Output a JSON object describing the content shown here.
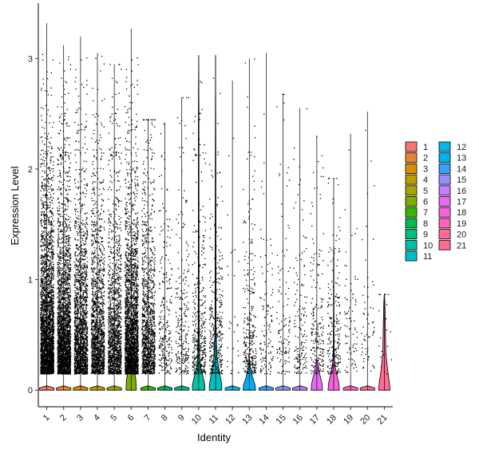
{
  "chart_data": {
    "type": "violin",
    "xlabel": "Identity",
    "ylabel": "Expression Level",
    "ylim": [
      -0.15,
      3.5
    ],
    "yticks": [
      0,
      1,
      2,
      3
    ],
    "legend_position": "right",
    "legend_columns": 2,
    "categories": [
      "1",
      "2",
      "3",
      "4",
      "5",
      "6",
      "7",
      "8",
      "9",
      "10",
      "11",
      "12",
      "13",
      "14",
      "15",
      "16",
      "17",
      "18",
      "19",
      "20",
      "21"
    ],
    "colors": [
      "#F8766D",
      "#EA8331",
      "#D89000",
      "#C09B00",
      "#A3A500",
      "#7CAE00",
      "#39B600",
      "#00BB4E",
      "#00BF7D",
      "#00C1A3",
      "#00BFC4",
      "#00BAE0",
      "#00B0F6",
      "#35A2FF",
      "#9590FF",
      "#C77CFF",
      "#E76BF3",
      "#FA62DB",
      "#FF62BC",
      "#FF6A98",
      "#FF6C91"
    ],
    "series": [
      {
        "cluster": "1",
        "max": 3.32,
        "median": 0.0,
        "violin": [
          [
            0,
            0.28
          ],
          [
            0.02,
            0.28
          ],
          [
            0.04,
            0.0
          ]
        ],
        "points": 3000
      },
      {
        "cluster": "2",
        "max": 3.12,
        "median": 0.0,
        "violin": [
          [
            0,
            0.28
          ],
          [
            0.02,
            0.28
          ],
          [
            0.04,
            0.0
          ]
        ],
        "points": 2600
      },
      {
        "cluster": "3",
        "max": 3.2,
        "median": 0.0,
        "violin": [
          [
            0,
            0.28
          ],
          [
            0.02,
            0.28
          ],
          [
            0.04,
            0.0
          ]
        ],
        "points": 1800
      },
      {
        "cluster": "4",
        "max": 3.05,
        "median": 0.0,
        "violin": [
          [
            0,
            0.28
          ],
          [
            0.02,
            0.28
          ],
          [
            0.04,
            0.0
          ]
        ],
        "points": 1500
      },
      {
        "cluster": "5",
        "max": 2.95,
        "median": 0.0,
        "violin": [
          [
            0,
            0.28
          ],
          [
            0.02,
            0.28
          ],
          [
            0.04,
            0.0
          ]
        ],
        "points": 1400
      },
      {
        "cluster": "6",
        "max": 3.27,
        "median": 0.0,
        "violin": [
          [
            0,
            0.2
          ],
          [
            0.1,
            0.18
          ],
          [
            0.2,
            0.1
          ],
          [
            0.28,
            0.04
          ],
          [
            0.33,
            0.0
          ]
        ],
        "points": 2400
      },
      {
        "cluster": "7",
        "max": 2.45,
        "median": 0.0,
        "violin": [
          [
            0,
            0.28
          ],
          [
            0.02,
            0.28
          ],
          [
            0.04,
            0.0
          ]
        ],
        "points": 1200
      },
      {
        "cluster": "8",
        "max": 2.42,
        "median": 0.0,
        "violin": [
          [
            0,
            0.28
          ],
          [
            0.02,
            0.28
          ],
          [
            0.04,
            0.0
          ]
        ],
        "points": 250
      },
      {
        "cluster": "9",
        "max": 2.65,
        "median": 0.0,
        "violin": [
          [
            0,
            0.28
          ],
          [
            0.02,
            0.28
          ],
          [
            0.04,
            0.0
          ]
        ],
        "points": 250
      },
      {
        "cluster": "10",
        "max": 3.03,
        "median": 0.0,
        "violin": [
          [
            0,
            0.24
          ],
          [
            0.05,
            0.24
          ],
          [
            0.12,
            0.17
          ],
          [
            0.2,
            0.08
          ],
          [
            0.28,
            0.04
          ],
          [
            0.5,
            0.02
          ],
          [
            1.0,
            0.015
          ],
          [
            2.5,
            0.01
          ],
          [
            3.03,
            0.0
          ]
        ],
        "points": 400
      },
      {
        "cluster": "11",
        "max": 3.03,
        "median": 0.0,
        "violin": [
          [
            0,
            0.24
          ],
          [
            0.05,
            0.24
          ],
          [
            0.14,
            0.17
          ],
          [
            0.24,
            0.1
          ],
          [
            0.32,
            0.05
          ],
          [
            0.6,
            0.02
          ],
          [
            1.5,
            0.015
          ],
          [
            2.3,
            0.01
          ],
          [
            3.03,
            0.0
          ]
        ],
        "points": 350
      },
      {
        "cluster": "12",
        "max": 2.8,
        "median": 0.0,
        "violin": [
          [
            0,
            0.28
          ],
          [
            0.02,
            0.28
          ],
          [
            0.04,
            0.0
          ]
        ],
        "points": 30
      },
      {
        "cluster": "13",
        "max": 3.0,
        "median": 0.0,
        "violin": [
          [
            0,
            0.24
          ],
          [
            0.05,
            0.22
          ],
          [
            0.12,
            0.12
          ],
          [
            0.2,
            0.05
          ],
          [
            0.3,
            0.0
          ]
        ],
        "points": 300
      },
      {
        "cluster": "14",
        "max": 3.05,
        "median": 0.0,
        "violin": [
          [
            0,
            0.28
          ],
          [
            0.02,
            0.28
          ],
          [
            0.04,
            0.0
          ]
        ],
        "points": 120
      },
      {
        "cluster": "15",
        "max": 2.68,
        "median": 0.0,
        "violin": [
          [
            0,
            0.28
          ],
          [
            0.02,
            0.28
          ],
          [
            0.04,
            0.0
          ]
        ],
        "points": 120
      },
      {
        "cluster": "16",
        "max": 2.55,
        "median": 0.0,
        "violin": [
          [
            0,
            0.28
          ],
          [
            0.02,
            0.28
          ],
          [
            0.04,
            0.0
          ]
        ],
        "points": 150
      },
      {
        "cluster": "17",
        "max": 2.3,
        "median": 0.0,
        "violin": [
          [
            0,
            0.22
          ],
          [
            0.06,
            0.2
          ],
          [
            0.14,
            0.12
          ],
          [
            0.22,
            0.05
          ],
          [
            0.28,
            0.0
          ]
        ],
        "points": 200
      },
      {
        "cluster": "18",
        "max": 1.92,
        "median": 0.0,
        "violin": [
          [
            0,
            0.22
          ],
          [
            0.06,
            0.2
          ],
          [
            0.14,
            0.12
          ],
          [
            0.22,
            0.05
          ],
          [
            0.32,
            0.02
          ],
          [
            0.7,
            0.01
          ],
          [
            1.2,
            0.005
          ],
          [
            1.3,
            0.0
          ]
        ],
        "points": 200
      },
      {
        "cluster": "19",
        "max": 2.32,
        "median": 0.0,
        "violin": [
          [
            0,
            0.28
          ],
          [
            0.02,
            0.28
          ],
          [
            0.04,
            0.0
          ]
        ],
        "points": 80
      },
      {
        "cluster": "20",
        "max": 2.52,
        "median": 0.0,
        "violin": [
          [
            0,
            0.28
          ],
          [
            0.02,
            0.28
          ],
          [
            0.04,
            0.0
          ]
        ],
        "points": 60
      },
      {
        "cluster": "21",
        "max": 0.87,
        "median": 0.0,
        "violin": [
          [
            0,
            0.22
          ],
          [
            0.06,
            0.2
          ],
          [
            0.14,
            0.15
          ],
          [
            0.24,
            0.1
          ],
          [
            0.34,
            0.06
          ],
          [
            0.45,
            0.05
          ],
          [
            0.6,
            0.04
          ],
          [
            0.8,
            0.02
          ],
          [
            0.87,
            0.0
          ]
        ],
        "points": 20
      }
    ]
  }
}
